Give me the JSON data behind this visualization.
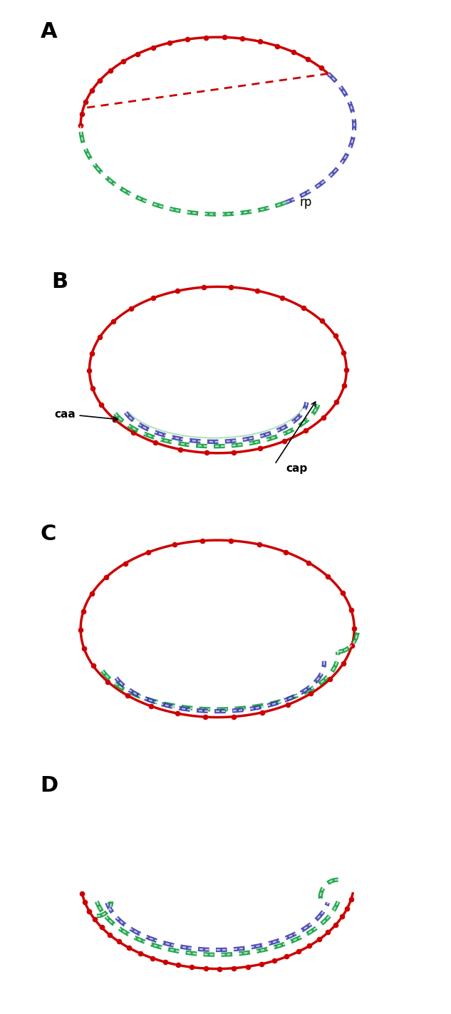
{
  "bg_color": "#ffffff",
  "red_color": "#cc0000",
  "blue_color": "#3333aa",
  "green_color": "#009933",
  "dashed_red": "#cc0000",
  "panel_labels": [
    "A",
    "B",
    "C",
    "D"
  ],
  "label_rp": "rp",
  "label_caa": "caa",
  "label_cap": "cap"
}
